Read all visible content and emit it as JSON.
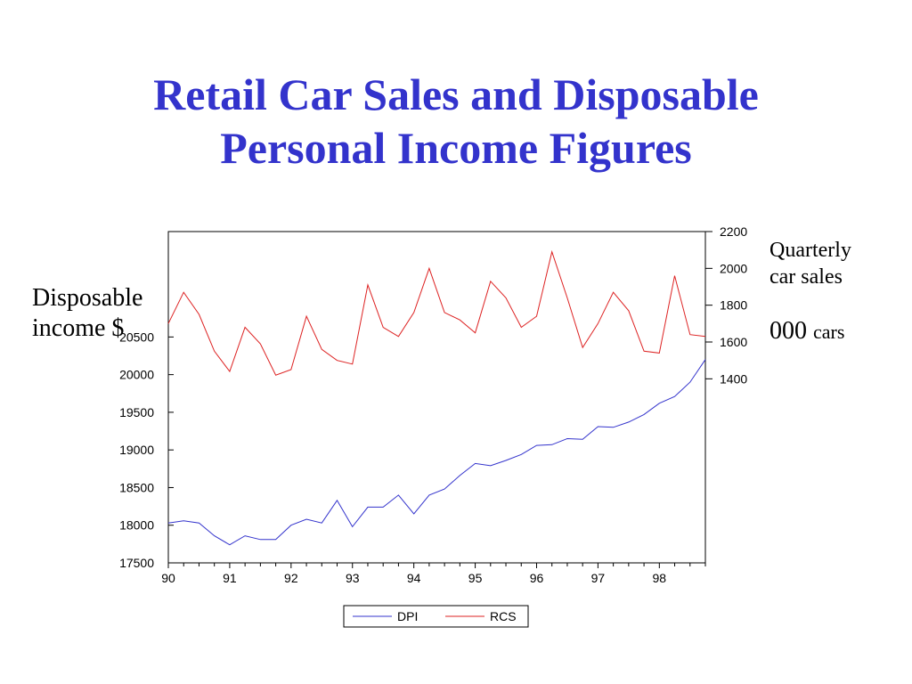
{
  "title": {
    "line1": "Retail Car Sales and Disposable",
    "line2": "Personal Income Figures"
  },
  "left_label": {
    "line1": "Disposable",
    "line2": "income $"
  },
  "right_label": {
    "line1": "Quarterly",
    "line2": "car sales",
    "unit_big": "000",
    "unit_small": "cars"
  },
  "colors": {
    "title": "#3333cc",
    "dpi": "#3333cc",
    "rcs": "#dd2222"
  },
  "chart_data": {
    "type": "line",
    "title": "",
    "x_tick_labels": [
      "90",
      "91",
      "92",
      "93",
      "94",
      "95",
      "96",
      "97",
      "98"
    ],
    "quarters_per_year": 4,
    "x_start": "1990Q1",
    "left_axis": {
      "ticks": [
        17500,
        18000,
        18500,
        19000,
        19500,
        20000,
        20500
      ],
      "ylim": [
        17500,
        21900
      ]
    },
    "right_axis": {
      "ticks": [
        1400,
        1600,
        1800,
        2000,
        2200
      ],
      "ylim": [
        400,
        2200
      ]
    },
    "grid": false,
    "legend_position": "bottom-center",
    "series": [
      {
        "name": "DPI",
        "axis": "left",
        "color": "#3333cc",
        "values": [
          18030,
          18060,
          18030,
          17860,
          17740,
          17860,
          17810,
          17810,
          18000,
          18080,
          18030,
          18330,
          17980,
          18240,
          18240,
          18400,
          18150,
          18400,
          18480,
          18660,
          18820,
          18790,
          18860,
          18940,
          19060,
          19070,
          19150,
          19140,
          19310,
          19300,
          19370,
          19470,
          19620,
          19710,
          19900,
          20200
        ]
      },
      {
        "name": "RCS",
        "axis": "right",
        "color": "#dd2222",
        "values": [
          1700,
          1870,
          1750,
          1550,
          1440,
          1680,
          1590,
          1420,
          1450,
          1740,
          1560,
          1500,
          1480,
          1910,
          1680,
          1630,
          1760,
          2000,
          1760,
          1720,
          1650,
          1930,
          1840,
          1680,
          1740,
          2090,
          1840,
          1570,
          1700,
          1870,
          1770,
          1550,
          1540,
          1960,
          1640,
          1630
        ]
      }
    ]
  }
}
